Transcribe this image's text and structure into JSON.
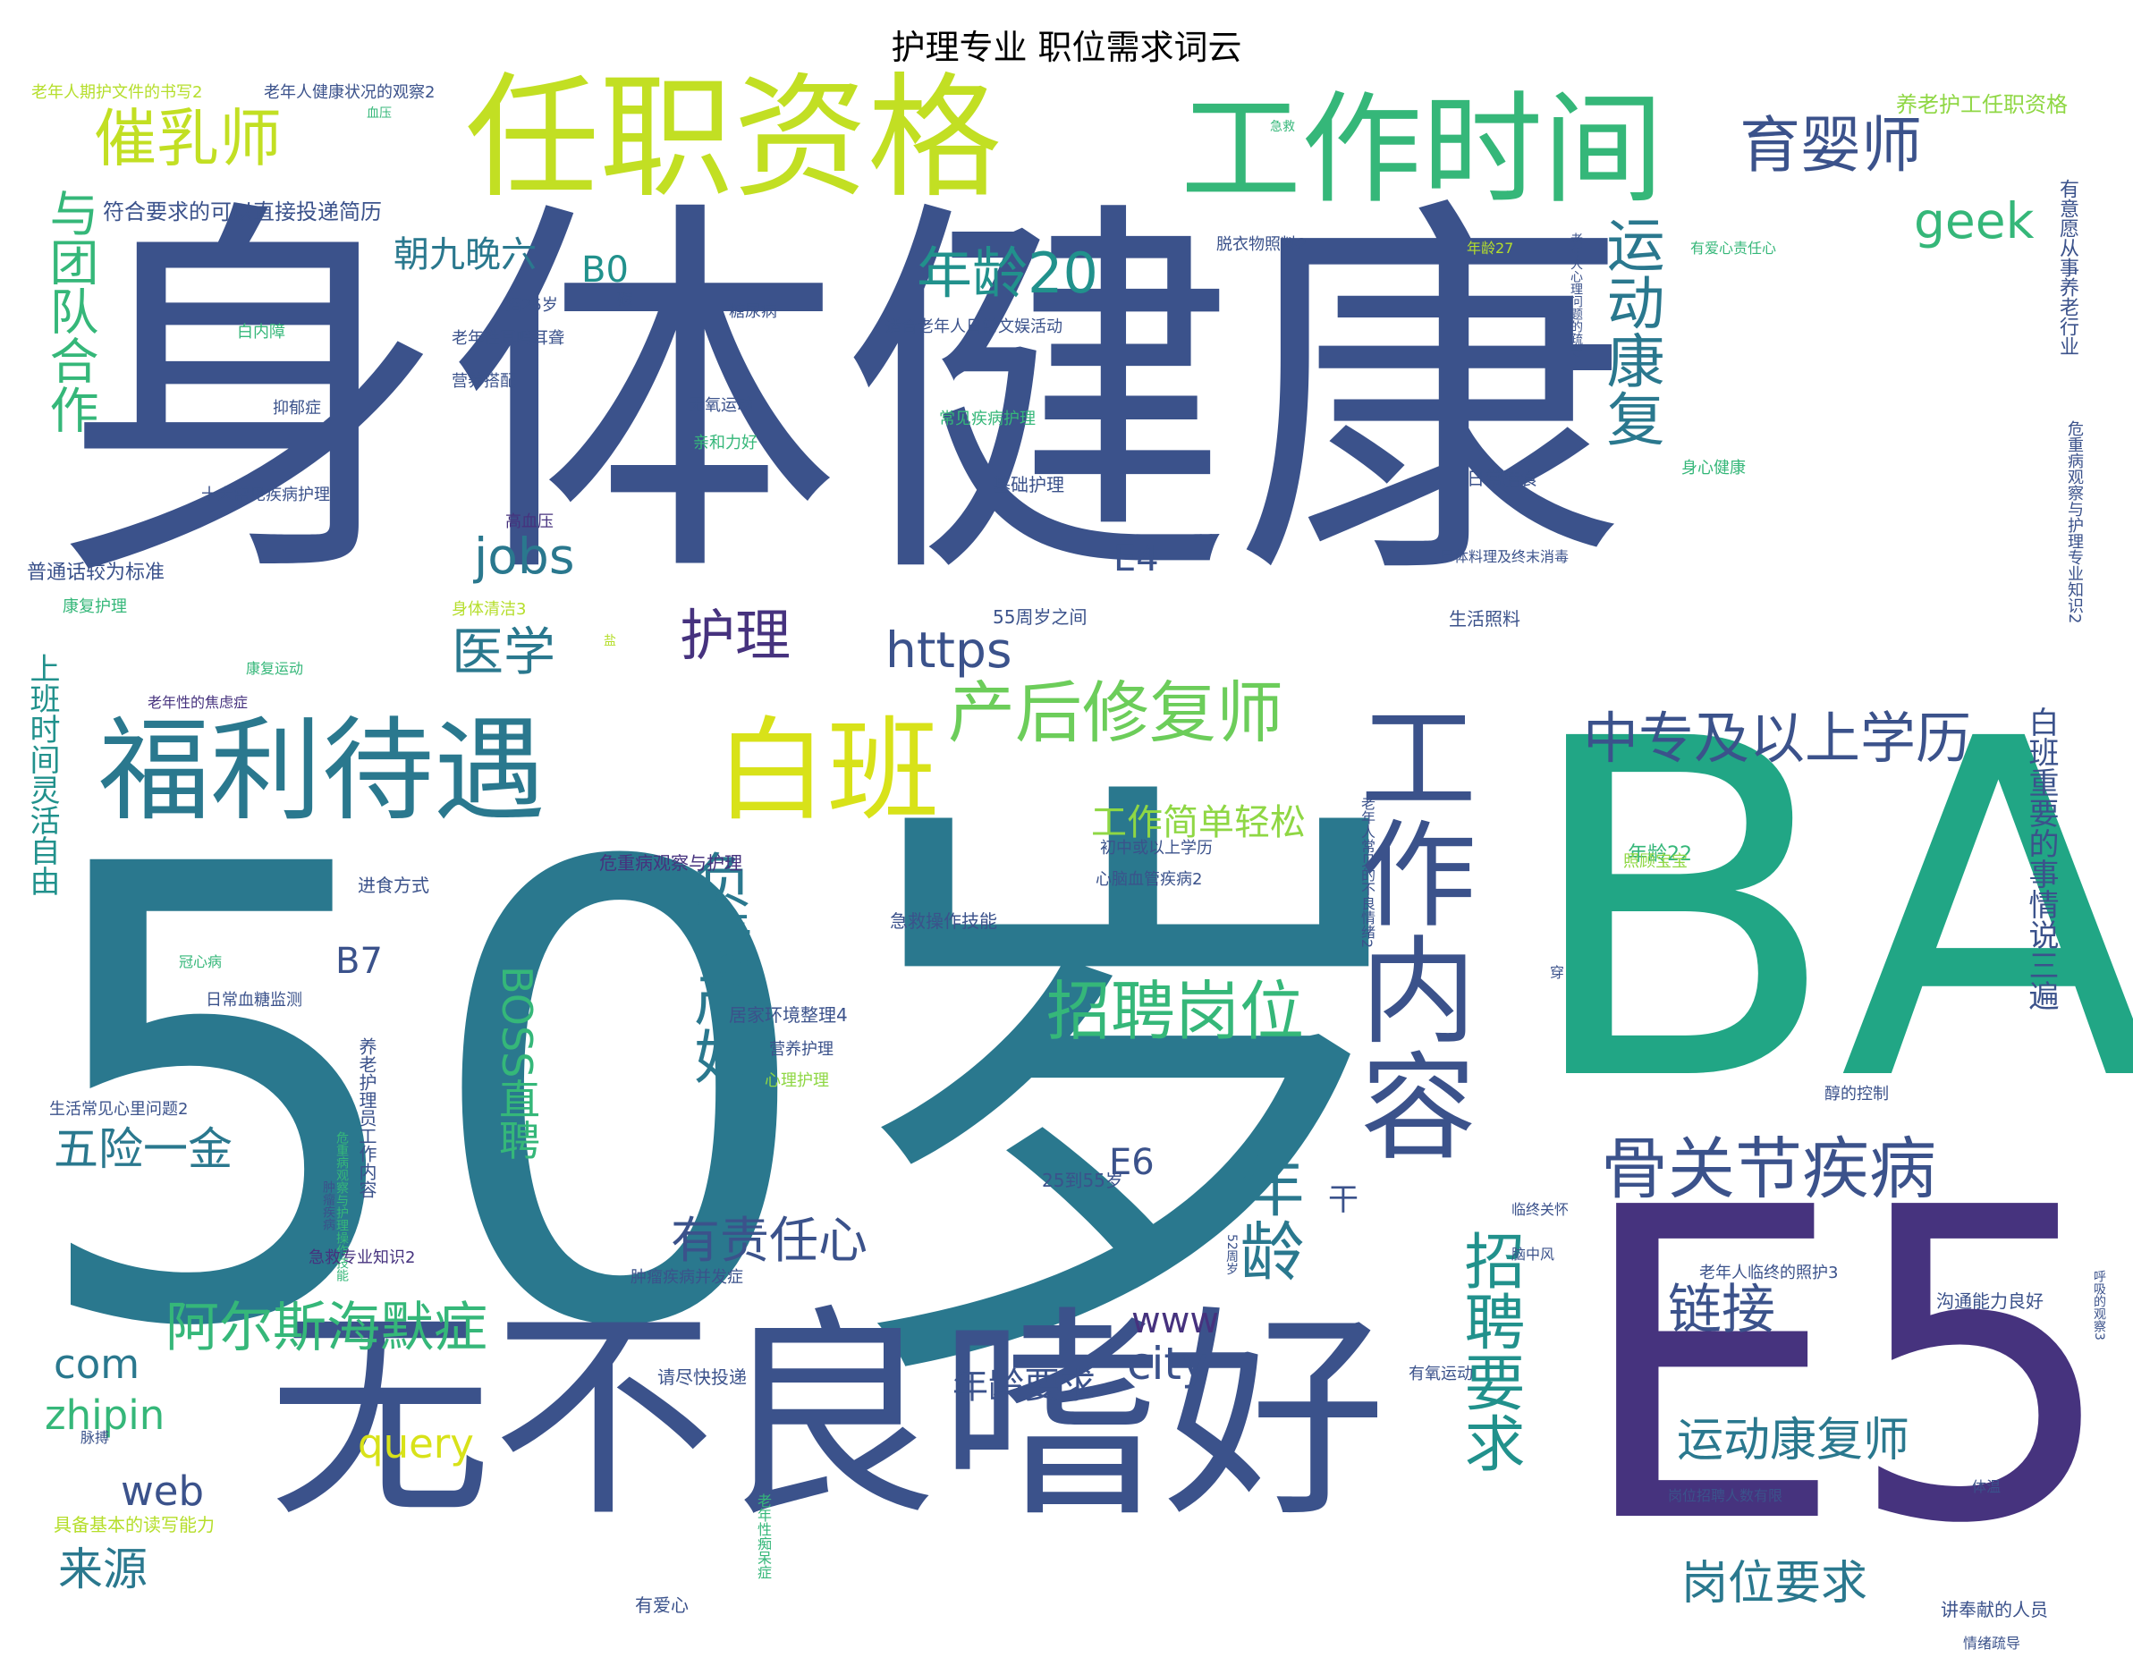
{
  "title": "护理专业 职位需求词云",
  "colors": {
    "yellow": "#cde11d",
    "lime": "#8fd744",
    "green": "#35b779",
    "teal": "#2a788e",
    "cyan": "#21918c",
    "blue": "#3b528b",
    "indigo": "#46327e",
    "purple": "#440154"
  },
  "words": [
    {
      "text": "身体健康",
      "color": "#3b528b"
    },
    {
      "text": "50岁",
      "color": "#2a788e"
    },
    {
      "text": "BA",
      "color": "#21a685"
    },
    {
      "text": "E5",
      "color": "#46337e"
    },
    {
      "text": "无不良嗜好",
      "color": "#3b528b"
    },
    {
      "text": "任职资格",
      "color": "#c2df23"
    },
    {
      "text": "工作时间",
      "color": "#35b779"
    },
    {
      "text": "福利待遇",
      "color": "#2a788e"
    },
    {
      "text": "白班",
      "color": "#d8e219"
    },
    {
      "text": "工作内容",
      "color": "#3b528b"
    },
    {
      "text": "产后修复师",
      "color": "#6ccd5a"
    },
    {
      "text": "骨关节疾病",
      "color": "#3b528b"
    },
    {
      "text": "中专及以上学历",
      "color": "#3b528b"
    },
    {
      "text": "运动康复",
      "color": "#2a788e"
    },
    {
      "text": "招聘岗位",
      "color": "#35b779"
    },
    {
      "text": "负责产妇",
      "color": "#2a788e"
    },
    {
      "text": "招聘要求",
      "color": "#21918c"
    },
    {
      "text": "年龄",
      "color": "#2a788e"
    },
    {
      "text": "阿尔斯海默症",
      "color": "#35b779"
    },
    {
      "text": "催乳师",
      "color": "#c2df23"
    },
    {
      "text": "育婴师",
      "color": "#3b528b"
    },
    {
      "text": "与团队合作",
      "color": "#35b779"
    },
    {
      "text": "年龄20",
      "color": "#21918c"
    },
    {
      "text": "护理",
      "color": "#46327e"
    },
    {
      "text": "医学",
      "color": "#2a788e"
    },
    {
      "text": "https",
      "color": "#3b528b"
    },
    {
      "text": "jobs",
      "color": "#2a788e"
    },
    {
      "text": "geek",
      "color": "#35b779"
    },
    {
      "text": "BOSS直聘",
      "color": "#35b779"
    },
    {
      "text": "有责任心",
      "color": "#3b528b"
    },
    {
      "text": "五险一金",
      "color": "#2a788e"
    },
    {
      "text": "链接",
      "color": "#3b528b"
    },
    {
      "text": "运动康复师",
      "color": "#2a788e"
    },
    {
      "text": "岗位要求",
      "color": "#2a788e"
    },
    {
      "text": "来源",
      "color": "#2a788e"
    },
    {
      "text": "zhipin",
      "color": "#35b779"
    },
    {
      "text": "query",
      "color": "#d8e219"
    },
    {
      "text": "web",
      "color": "#3b528b"
    },
    {
      "text": "com",
      "color": "#2a788e"
    },
    {
      "text": "city",
      "color": "#3b528b"
    },
    {
      "text": "www",
      "color": "#46327e"
    },
    {
      "text": "年龄要求",
      "color": "#3b528b"
    },
    {
      "text": "工作简单轻松",
      "color": "#8fd744"
    },
    {
      "text": "朝九晚六",
      "color": "#2a788e"
    },
    {
      "text": "B0",
      "color": "#21918c"
    },
    {
      "text": "B7",
      "color": "#3b528b"
    },
    {
      "text": "E4",
      "color": "#3b528b"
    },
    {
      "text": "E6",
      "color": "#3b528b"
    },
    {
      "text": "干",
      "color": "#3b528b"
    },
    {
      "text": "上班时间灵活自由",
      "color": "#21918c"
    },
    {
      "text": "白班重要的事情说三遍",
      "color": "#3b528b"
    },
    {
      "text": "有意愿从事养老行业",
      "color": "#3b528b"
    },
    {
      "text": "危重病观察与护理专业知识2",
      "color": "#3b528b"
    },
    {
      "text": "养老护工任职资格",
      "color": "#8fd744"
    },
    {
      "text": "符合要求的可以直接投递简历",
      "color": "#3b528b"
    },
    {
      "text": "老年人期护文件的书写2",
      "color": "#b5de2b"
    },
    {
      "text": "老年人健康状况的观察2",
      "color": "#3b528b"
    },
    {
      "text": "脱衣物照料2",
      "color": "#3b528b"
    },
    {
      "text": "年龄27",
      "color": "#b5de2b"
    },
    {
      "text": "有爱心责任心",
      "color": "#35b779"
    },
    {
      "text": "招25岁",
      "color": "#3b528b"
    },
    {
      "text": "碳",
      "color": "#3b528b"
    },
    {
      "text": "糖尿病",
      "color": "#3b528b"
    },
    {
      "text": "适合老年人日常文娱活动",
      "color": "#3b528b"
    },
    {
      "text": "白内障",
      "color": "#35b779"
    },
    {
      "text": "老年性耳鸣耳聋",
      "color": "#3b528b"
    },
    {
      "text": "营养搭配",
      "color": "#3b528b"
    },
    {
      "text": "抑郁症",
      "color": "#3b528b"
    },
    {
      "text": "无氧运动",
      "color": "#3b528b"
    },
    {
      "text": "亲和力好",
      "color": "#35b779"
    },
    {
      "text": "常见疾病护理",
      "color": "#35b779"
    },
    {
      "text": "十大常见疾病护理",
      "color": "#3b528b"
    },
    {
      "text": "基础护理",
      "color": "#3b528b"
    },
    {
      "text": "日常膳食",
      "color": "#3b528b"
    },
    {
      "text": "身心健康",
      "color": "#35b779"
    },
    {
      "text": "高血压",
      "color": "#46327e"
    },
    {
      "text": "普通话较为标准",
      "color": "#3b528b"
    },
    {
      "text": "康复护理",
      "color": "#35b779"
    },
    {
      "text": "身体清洁3",
      "color": "#b5de2b"
    },
    {
      "text": "55周岁之间",
      "color": "#3b528b"
    },
    {
      "text": "尸体料理及终末消毒",
      "color": "#3b528b"
    },
    {
      "text": "生活照料",
      "color": "#3b528b"
    },
    {
      "text": "老年人心理问题的疏导",
      "color": "#3b528b"
    },
    {
      "text": "康复运动",
      "color": "#35b779"
    },
    {
      "text": "老年性的焦虑症",
      "color": "#46327e"
    },
    {
      "text": "盐",
      "color": "#b5de2b"
    },
    {
      "text": "年龄22",
      "color": "#35b779"
    },
    {
      "text": "初中或以上学历",
      "color": "#3b528b"
    },
    {
      "text": "心脑血管疾病2",
      "color": "#3b528b"
    },
    {
      "text": "危重病观察与护理",
      "color": "#46327e"
    },
    {
      "text": "进食方式",
      "color": "#3b528b"
    },
    {
      "text": "急救操作技能",
      "color": "#3b528b"
    },
    {
      "text": "照顾宝宝",
      "color": "#8fd744"
    },
    {
      "text": "冠心病",
      "color": "#35b779"
    },
    {
      "text": "日常血糖监测",
      "color": "#3b528b"
    },
    {
      "text": "居家环境整理4",
      "color": "#3b528b"
    },
    {
      "text": "营养护理",
      "color": "#3b528b"
    },
    {
      "text": "心理护理",
      "color": "#8fd744"
    },
    {
      "text": "穿",
      "color": "#3b528b"
    },
    {
      "text": "老年人常见的不良情绪2",
      "color": "#3b528b"
    },
    {
      "text": "醇的控制",
      "color": "#3b528b"
    },
    {
      "text": "养老护理员工作内容",
      "color": "#3b528b"
    },
    {
      "text": "生活常见心里问题2",
      "color": "#3b528b"
    },
    {
      "text": "25到55岁",
      "color": "#3b528b"
    },
    {
      "text": "肿瘤疾病",
      "color": "#3b528b"
    },
    {
      "text": "危重病观察与护理操作技能",
      "color": "#35b779"
    },
    {
      "text": "临终关怀",
      "color": "#3b528b"
    },
    {
      "text": "脑中风",
      "color": "#3b528b"
    },
    {
      "text": "52周岁",
      "color": "#3b528b"
    },
    {
      "text": "急救专业知识2",
      "color": "#46327e"
    },
    {
      "text": "肿瘤疾病并发症",
      "color": "#3b528b"
    },
    {
      "text": "老年人临终的照护3",
      "color": "#3b528b"
    },
    {
      "text": "沟通能力良好",
      "color": "#3b528b"
    },
    {
      "text": "请尽快投递",
      "color": "#3b528b"
    },
    {
      "text": "有氧运动",
      "color": "#3b528b"
    },
    {
      "text": "脉搏",
      "color": "#3b528b"
    },
    {
      "text": "岗位招聘人数有限",
      "color": "#3b528b"
    },
    {
      "text": "体温",
      "color": "#3b528b"
    },
    {
      "text": "具备基本的读写能力",
      "color": "#b5de2b"
    },
    {
      "text": "老年性痴呆症",
      "color": "#35b779"
    },
    {
      "text": "有爱心",
      "color": "#3b528b"
    },
    {
      "text": "讲奉献的人员",
      "color": "#3b528b"
    },
    {
      "text": "情绪疏导",
      "color": "#3b528b"
    },
    {
      "text": "呼吸的观察3",
      "color": "#3b528b"
    },
    {
      "text": "血压",
      "color": "#35b779"
    },
    {
      "text": "急救",
      "color": "#35b779"
    }
  ]
}
